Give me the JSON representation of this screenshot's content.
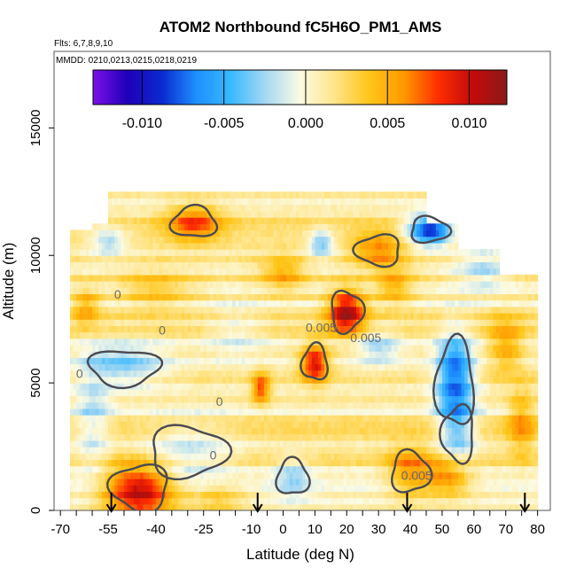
{
  "chart_data": {
    "type": "heatmap",
    "title": "ATOM2 Northbound fC5H6O_PM1_AMS",
    "flights_note": "Flts: 6,7,8,9,10",
    "dates_note": "MMDD: 0210,0213,0215,0218,0219",
    "xlabel": "Latitude (deg N)",
    "ylabel": "Altitude (m)",
    "xlim": [
      -72,
      84
    ],
    "ylim": [
      0,
      18000
    ],
    "x_ticks": [
      "-70",
      "-55",
      "-40",
      "-25",
      "-10",
      "0",
      "10",
      "20",
      "30",
      "40",
      "50",
      "60",
      "70",
      "80"
    ],
    "x_tick_values": [
      -70,
      -55,
      -40,
      -25,
      -10,
      0,
      10,
      20,
      30,
      40,
      50,
      60,
      70,
      80
    ],
    "y_ticks": [
      "0",
      "5000",
      "10000",
      "15000"
    ],
    "y_tick_values": [
      0,
      5000,
      10000,
      15000
    ],
    "colorbar": {
      "range": [
        -0.013,
        0.0123
      ],
      "ticks": [
        "-0.010",
        "-0.005",
        "0.000",
        "0.005",
        "0.010"
      ],
      "tick_values": [
        -0.01,
        -0.005,
        0.0,
        0.005,
        0.01
      ],
      "colors": [
        "#7a10e8",
        "#1f00b8",
        "#0a2ad0",
        "#1e90ff",
        "#39b9ff",
        "#a6d8f2",
        "#fbfbe4",
        "#ffe58a",
        "#ffc61a",
        "#ff9a00",
        "#ff2e00",
        "#c40a0a",
        "#8b1a1a"
      ]
    },
    "contour_labels": [
      "0",
      "0.005"
    ],
    "flight_arrows_latitude": [
      -54,
      -8,
      39,
      76
    ],
    "grid": false,
    "legend": "colorbar-top",
    "data_extent": {
      "lat_range": [
        -67,
        80
      ],
      "alt_range": [
        0,
        12900
      ],
      "note_values": [
        {
          "lat": -45,
          "alt": 800,
          "value": 0.011
        },
        {
          "lat": 20,
          "alt": 7800,
          "value": 0.011
        },
        {
          "lat": 10,
          "alt": 5800,
          "value": 0.01
        },
        {
          "lat": 54,
          "alt": 5200,
          "value": -0.008
        },
        {
          "lat": 46,
          "alt": 11000,
          "value": -0.01
        },
        {
          "lat": -28,
          "alt": 11300,
          "value": 0.006
        }
      ]
    }
  }
}
